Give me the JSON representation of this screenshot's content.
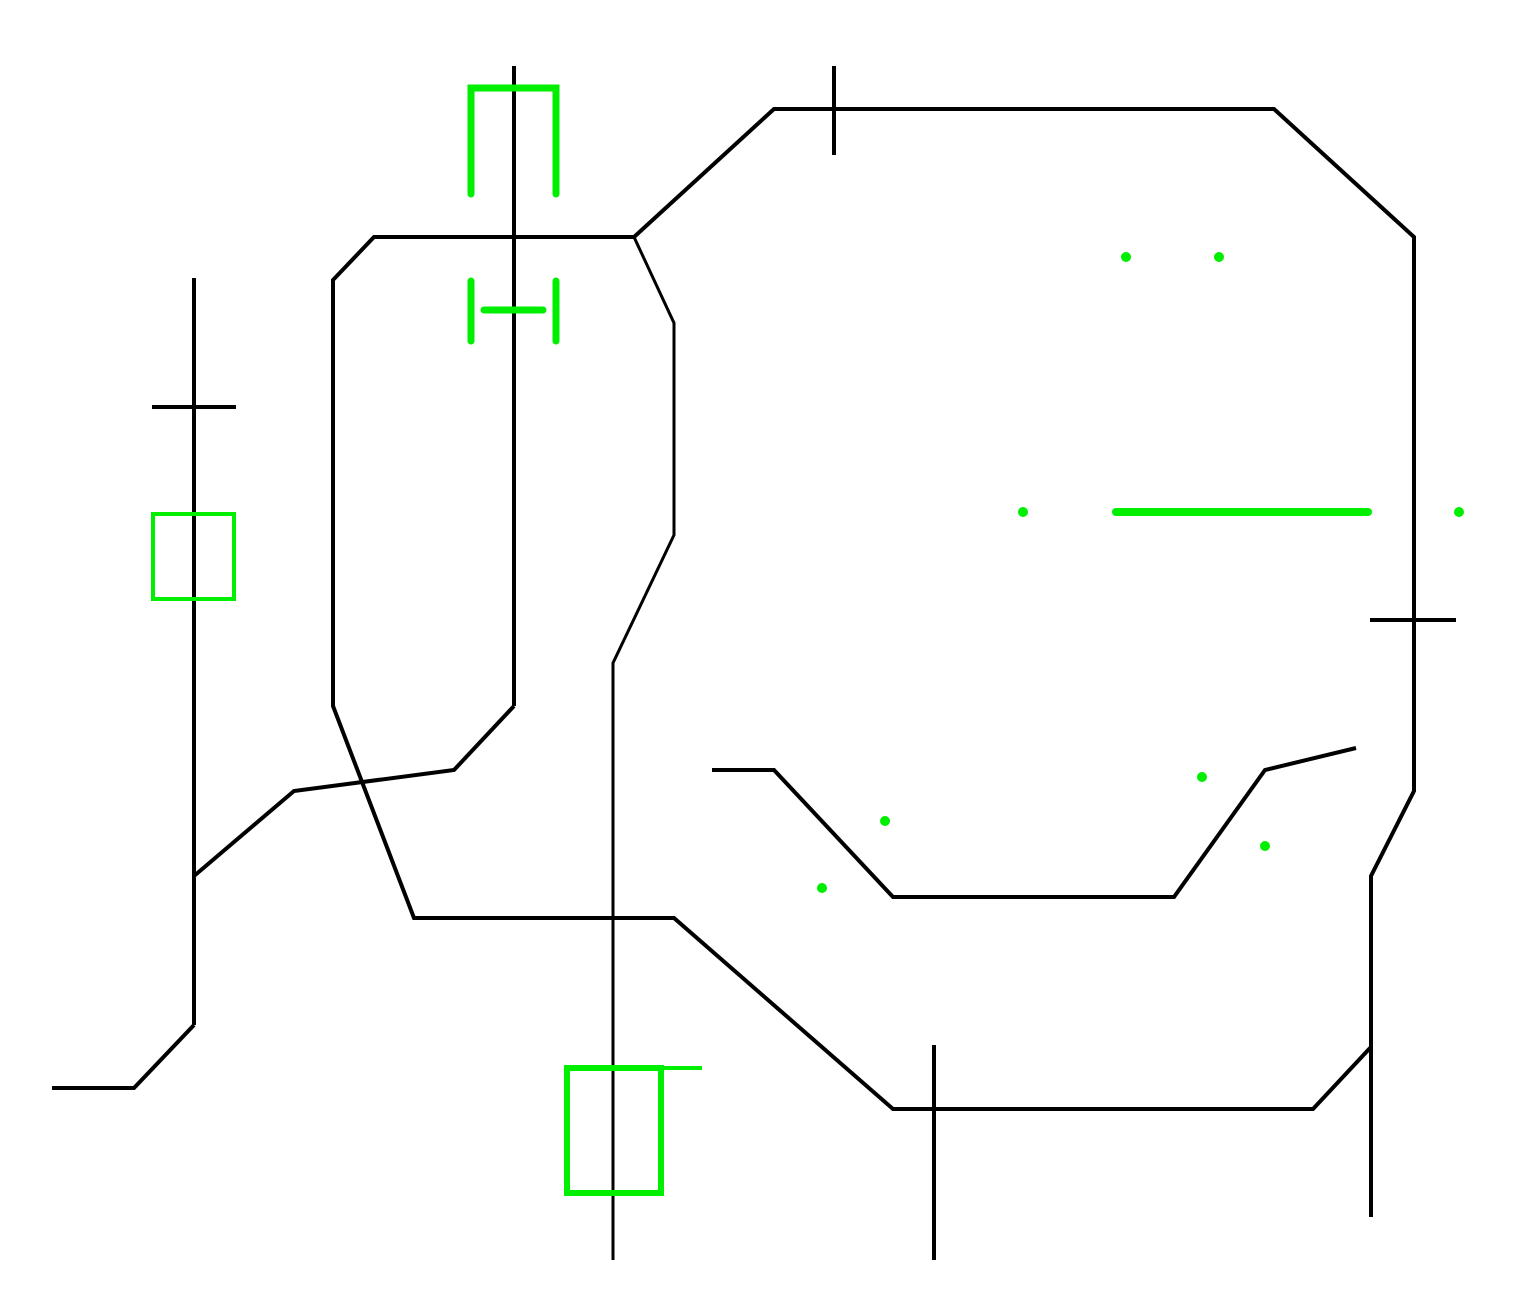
{
  "colors": {
    "background": "#ffffff",
    "track": "#000000",
    "marker": "#00ee00"
  },
  "diagram": {
    "description_visible_text": "",
    "elements": [
      "track-left-vertical",
      "track-inner-loop",
      "track-outer-loop",
      "track-center-branch",
      "track-bottom-spur",
      "green-u-marker-top",
      "green-h-marker-top",
      "green-square-marker-left",
      "green-square-marker-bottom",
      "green-bar-marker-right",
      "green-dots"
    ]
  }
}
